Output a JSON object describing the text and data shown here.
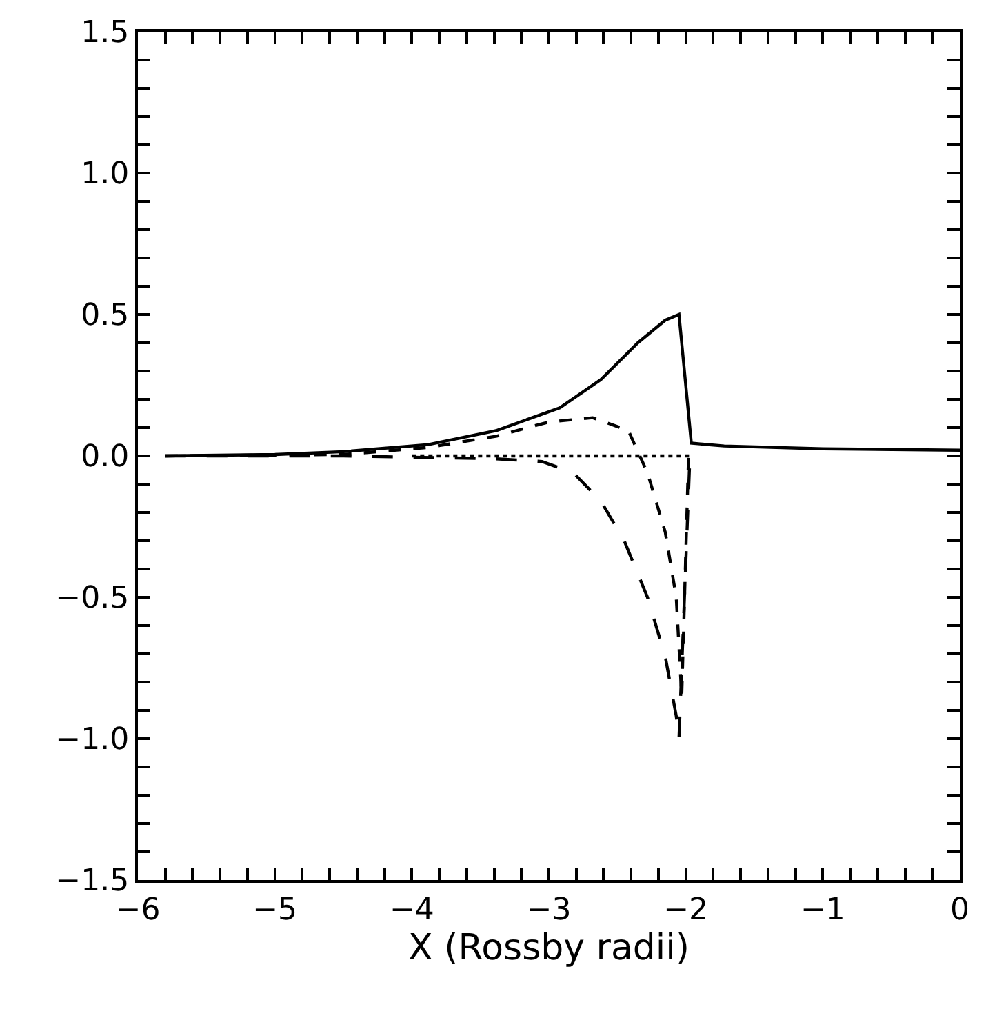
{
  "chart_data": {
    "type": "line",
    "xlabel": "X (Rossby radii)",
    "xlim": [
      -6,
      0
    ],
    "ylim": [
      -1.5,
      1.5
    ],
    "marker": "none",
    "xticks": [
      {
        "value": -6,
        "label": "−6"
      },
      {
        "value": -5.8,
        "label": null
      },
      {
        "value": -5.6,
        "label": null
      },
      {
        "value": -5.4,
        "label": null
      },
      {
        "value": -5.2,
        "label": null
      },
      {
        "value": -5,
        "label": "−5"
      },
      {
        "value": -4.8,
        "label": null
      },
      {
        "value": -4.6,
        "label": null
      },
      {
        "value": -4.4,
        "label": null
      },
      {
        "value": -4.2,
        "label": null
      },
      {
        "value": -4,
        "label": "−4"
      },
      {
        "value": -3.8,
        "label": null
      },
      {
        "value": -3.6,
        "label": null
      },
      {
        "value": -3.4,
        "label": null
      },
      {
        "value": -3.2,
        "label": null
      },
      {
        "value": -3,
        "label": "−3"
      },
      {
        "value": -2.8,
        "label": null
      },
      {
        "value": -2.6,
        "label": null
      },
      {
        "value": -2.4,
        "label": null
      },
      {
        "value": -2.2,
        "label": null
      },
      {
        "value": -2,
        "label": "−2"
      },
      {
        "value": -1.8,
        "label": null
      },
      {
        "value": -1.6,
        "label": null
      },
      {
        "value": -1.4,
        "label": null
      },
      {
        "value": -1.2,
        "label": null
      },
      {
        "value": -1,
        "label": "−1"
      },
      {
        "value": -0.8,
        "label": null
      },
      {
        "value": -0.6,
        "label": null
      },
      {
        "value": -0.4,
        "label": null
      },
      {
        "value": -0.2,
        "label": null
      },
      0
    ],
    "yticks": [
      {
        "value": -1.5,
        "label": "−1.5"
      },
      {
        "value": -1.4,
        "label": null
      },
      {
        "value": -1.3,
        "label": null
      },
      {
        "value": -1.2,
        "label": null
      },
      {
        "value": -1.1,
        "label": null
      },
      {
        "value": -1,
        "label": "−1.0"
      },
      {
        "value": -0.9,
        "label": null
      },
      {
        "value": -0.8,
        "label": null
      },
      {
        "value": -0.7,
        "label": null
      },
      {
        "value": -0.6,
        "label": null
      },
      {
        "value": -0.5,
        "label": "−0.5"
      },
      {
        "value": -0.4,
        "label": null
      },
      {
        "value": -0.3,
        "label": null
      },
      {
        "value": -0.2,
        "label": null
      },
      {
        "value": -0.1,
        "label": null
      },
      {
        "value": 0,
        "label": "0.0"
      },
      {
        "value": 0.1,
        "label": null
      },
      {
        "value": 0.2,
        "label": null
      },
      {
        "value": 0.3,
        "label": null
      },
      {
        "value": 0.4,
        "label": null
      },
      {
        "value": 0.5,
        "label": "0.5"
      },
      {
        "value": 0.6,
        "label": null
      },
      {
        "value": 0.7,
        "label": null
      },
      {
        "value": 0.8,
        "label": null
      },
      {
        "value": 0.9,
        "label": null
      },
      {
        "value": 1,
        "label": "1.0"
      },
      {
        "value": 1.1,
        "label": null
      },
      {
        "value": 1.2,
        "label": null
      },
      {
        "value": 1.3,
        "label": null
      },
      {
        "value": 1.4,
        "label": null
      },
      {
        "value": 1.5,
        "label": "1.5"
      }
    ],
    "series": [
      {
        "color": "#000000",
        "line_style": "solid",
        "x": [
          -5.8,
          -5,
          -4.5,
          -3.88,
          -3.38,
          -2.92,
          -2.62,
          -2.35,
          -2.15,
          -2.05,
          -1.96,
          -1.72,
          -1,
          0
        ],
        "values": [
          0,
          0.005,
          0.015,
          0.04,
          0.09,
          0.17,
          0.27,
          0.4,
          0.48,
          0.5,
          0.045,
          0.035,
          0.025,
          0.02
        ]
      },
      {
        "color": "#000000",
        "line_style": "dashed",
        "x": [
          -5.8,
          -4.5,
          -3.88,
          -3.38,
          -3,
          -2.68,
          -2.42,
          -2.28,
          -2.15,
          -2.07,
          -2.03,
          -1.98
        ],
        "values": [
          0,
          0.005,
          0.03,
          0.07,
          0.12,
          0.135,
          0.09,
          -0.06,
          -0.27,
          -0.5,
          -0.85,
          0
        ]
      },
      {
        "color": "#000000",
        "line_style": "longdashed",
        "x": [
          -5.8,
          -4.5,
          -3.4,
          -3.05,
          -2.82,
          -2.62,
          -2.45,
          -2.28,
          -2.15,
          -2.07,
          -2.05,
          -1.97
        ],
        "values": [
          0,
          0,
          -0.01,
          -0.02,
          -0.06,
          -0.16,
          -0.3,
          -0.5,
          -0.71,
          -0.92,
          -1.0,
          0
        ]
      },
      {
        "color": "#000000",
        "line_style": "dotted",
        "x": [
          -4.0,
          -1.95
        ],
        "values": [
          0,
          0
        ]
      }
    ]
  }
}
